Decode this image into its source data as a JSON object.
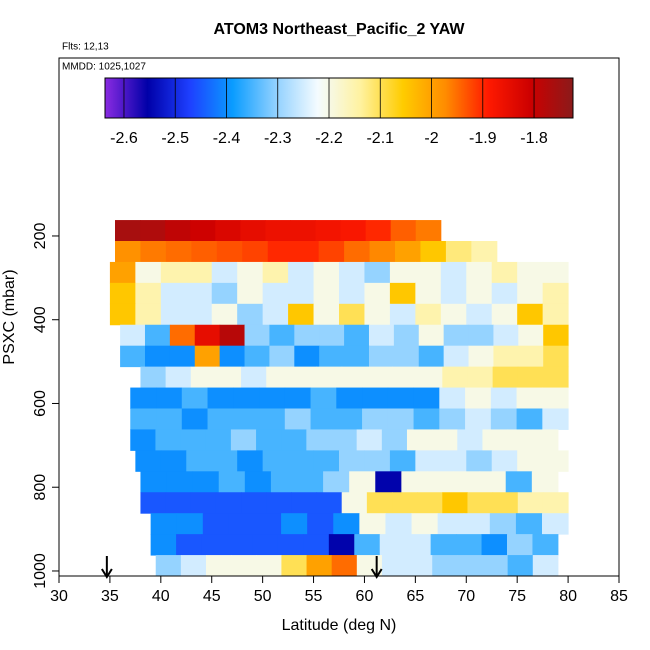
{
  "chart_data": {
    "type": "heatmap",
    "title": "ATOM3 Northeast_Pacific_2 YAW",
    "flights": "Flts: 12,13",
    "dates": "MMDD: 1025,1027",
    "xlabel": "Latitude (deg N)",
    "ylabel": "PSXC (mbar)",
    "xlim": [
      30,
      85
    ],
    "xticks": [
      30,
      35,
      40,
      45,
      50,
      55,
      60,
      65,
      70,
      75,
      80,
      85
    ],
    "ylim": [
      1012,
      -225
    ],
    "yticks": [
      200,
      400,
      600,
      800,
      1000
    ],
    "clim": [
      -2.637,
      -1.724
    ],
    "cticks": [
      -2.6,
      -2.5,
      -2.4,
      -2.3,
      -2.2,
      -2.1,
      -2.0,
      -1.9,
      -1.8
    ],
    "colormap": [
      "#8a2be2",
      "#0000a8",
      "#1e40ff",
      "#0a9cff",
      "#8fd0ff",
      "#f4fbff",
      "#fff2a0",
      "#ffcc00",
      "#ff8c00",
      "#ff1a00",
      "#cc0000",
      "#8b1a1a"
    ],
    "arrows": [
      34.7,
      61.2
    ],
    "rows": [
      {
        "p": [
          162,
          212
        ],
        "lat": [
          35.5,
          67.5
        ],
        "values": [
          -1.76,
          -1.77,
          -1.79,
          -1.81,
          -1.83,
          -1.85,
          -1.86,
          -1.86,
          -1.87,
          -1.88,
          -1.9,
          -1.94,
          -1.96
        ]
      },
      {
        "p": [
          212,
          262
        ],
        "lat": [
          35.5,
          73
        ],
        "values": [
          -1.98,
          -1.96,
          -1.95,
          -1.94,
          -1.93,
          -1.92,
          -1.9,
          -1.9,
          -1.92,
          -1.95,
          -1.97,
          -2.0,
          -2.05,
          -2.12,
          -2.15
        ]
      },
      {
        "p": [
          262,
          312
        ],
        "lat": [
          35,
          80
        ],
        "values": [
          -2.0,
          -2.2,
          -2.15,
          -2.15,
          -2.25,
          -2.2,
          -2.15,
          -2.25,
          -2.2,
          -2.25,
          -2.3,
          -2.2,
          -2.2,
          -2.25,
          -2.2,
          -2.15,
          -2.2,
          -2.2
        ]
      },
      {
        "p": [
          312,
          362
        ],
        "lat": [
          35,
          80
        ],
        "values": [
          -2.05,
          -2.15,
          -2.25,
          -2.25,
          -2.3,
          -2.2,
          -2.25,
          -2.25,
          -2.2,
          -2.25,
          -2.2,
          -2.05,
          -2.2,
          -2.25,
          -2.2,
          -2.25,
          -2.2,
          -2.15
        ]
      },
      {
        "p": [
          362,
          412
        ],
        "lat": [
          35,
          80
        ],
        "values": [
          -2.05,
          -2.15,
          -2.25,
          -2.25,
          -2.2,
          -2.3,
          -2.25,
          -2.05,
          -2.2,
          -2.1,
          -2.2,
          -2.25,
          -2.15,
          -2.2,
          -2.25,
          -2.2,
          -2.05,
          -2.15
        ]
      },
      {
        "p": [
          412,
          462
        ],
        "lat": [
          36,
          80
        ],
        "values": [
          -2.25,
          -2.35,
          -1.95,
          -1.85,
          -1.78,
          -2.3,
          -2.35,
          -2.3,
          -2.3,
          -2.35,
          -2.25,
          -2.3,
          -2.2,
          -2.3,
          -2.3,
          -2.25,
          -2.2,
          -2.05
        ]
      },
      {
        "p": [
          462,
          512
        ],
        "lat": [
          36,
          80
        ],
        "values": [
          -2.35,
          -2.4,
          -2.4,
          -2.0,
          -2.4,
          -2.35,
          -2.3,
          -2.4,
          -2.35,
          -2.35,
          -2.3,
          -2.3,
          -2.35,
          -2.25,
          -2.2,
          -2.15,
          -2.15,
          -2.1
        ]
      },
      {
        "p": [
          512,
          562
        ],
        "lat": [
          38,
          80
        ],
        "values": [
          -2.3,
          -2.25,
          -2.2,
          -2.2,
          -2.25,
          -2.2,
          -2.2,
          -2.2,
          -2.2,
          -2.2,
          -2.2,
          -2.2,
          -2.15,
          -2.15,
          -2.1,
          -2.1,
          -2.1
        ]
      },
      {
        "p": [
          562,
          612
        ],
        "lat": [
          37,
          80
        ],
        "values": [
          -2.4,
          -2.4,
          -2.35,
          -2.4,
          -2.4,
          -2.4,
          -2.4,
          -2.35,
          -2.4,
          -2.4,
          -2.4,
          -2.4,
          -2.25,
          -2.2,
          -2.25,
          -2.2,
          -2.2
        ]
      },
      {
        "p": [
          612,
          662
        ],
        "lat": [
          37,
          80
        ],
        "values": [
          -2.35,
          -2.35,
          -2.4,
          -2.35,
          -2.35,
          -2.35,
          -2.3,
          -2.35,
          -2.35,
          -2.3,
          -2.3,
          -2.35,
          -2.3,
          -2.25,
          -2.3,
          -2.35,
          -2.25
        ]
      },
      {
        "p": [
          662,
          712
        ],
        "lat": [
          37,
          79
        ],
        "values": [
          -2.4,
          -2.35,
          -2.35,
          -2.35,
          -2.3,
          -2.35,
          -2.35,
          -2.3,
          -2.3,
          -2.25,
          -2.3,
          -2.2,
          -2.2,
          -2.25,
          -2.2,
          -2.2,
          -2.2
        ]
      },
      {
        "p": [
          712,
          762
        ],
        "lat": [
          37.5,
          80
        ],
        "values": [
          -2.4,
          -2.4,
          -2.35,
          -2.35,
          -2.4,
          -2.35,
          -2.35,
          -2.35,
          -2.3,
          -2.3,
          -2.35,
          -2.25,
          -2.25,
          -2.3,
          -2.25,
          -2.2,
          -2.2
        ]
      },
      {
        "p": [
          762,
          812
        ],
        "lat": [
          38,
          79
        ],
        "values": [
          -2.4,
          -2.4,
          -2.4,
          -2.35,
          -2.4,
          -2.35,
          -2.35,
          -2.3,
          -2.2,
          -2.55,
          -2.2,
          -2.2,
          -2.2,
          -2.2,
          -2.35,
          -2.2
        ]
      },
      {
        "p": [
          812,
          862
        ],
        "lat": [
          38,
          80
        ],
        "values": [
          -2.45,
          -2.45,
          -2.45,
          -2.45,
          -2.45,
          -2.45,
          -2.45,
          -2.45,
          -2.2,
          -2.1,
          -2.1,
          -2.1,
          -2.05,
          -2.1,
          -2.1,
          -2.15,
          -2.15
        ]
      },
      {
        "p": [
          862,
          912
        ],
        "lat": [
          39,
          80
        ],
        "values": [
          -2.4,
          -2.4,
          -2.45,
          -2.45,
          -2.45,
          -2.4,
          -2.45,
          -2.4,
          -2.2,
          -2.25,
          -2.2,
          -2.25,
          -2.25,
          -2.3,
          -2.35,
          -2.25
        ]
      },
      {
        "p": [
          912,
          962
        ],
        "lat": [
          39,
          79
        ],
        "values": [
          -2.4,
          -2.45,
          -2.45,
          -2.45,
          -2.45,
          -2.45,
          -2.45,
          -2.55,
          -2.35,
          -2.25,
          -2.25,
          -2.35,
          -2.35,
          -2.4,
          -2.3,
          -2.35
        ]
      },
      {
        "p": [
          962,
          1012
        ],
        "lat": [
          39.5,
          79
        ],
        "values": [
          -2.3,
          -2.25,
          -2.2,
          -2.2,
          -2.2,
          -2.1,
          -2.0,
          -1.95,
          -2.2,
          -2.25,
          -2.25,
          -2.3,
          -2.3,
          -2.3,
          -2.35,
          -2.25
        ]
      }
    ]
  }
}
